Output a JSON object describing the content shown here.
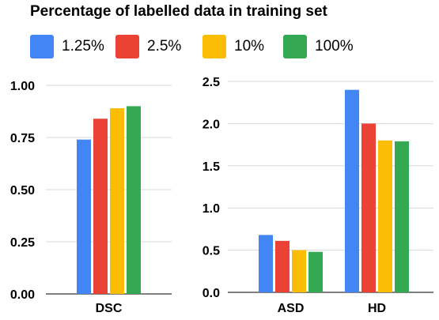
{
  "legend": {
    "title": "Percentage of labelled data in training set",
    "items": [
      {
        "label": "1.25%",
        "color": "#4285f4"
      },
      {
        "label": "2.5%",
        "color": "#ea4335"
      },
      {
        "label": "10%",
        "color": "#fbbc04"
      },
      {
        "label": "100%",
        "color": "#34a853"
      }
    ]
  },
  "chart_data": [
    {
      "type": "bar",
      "categories": [
        "DSC"
      ],
      "series": [
        {
          "name": "1.25%",
          "values": [
            0.74
          ]
        },
        {
          "name": "2.5%",
          "values": [
            0.84
          ]
        },
        {
          "name": "10%",
          "values": [
            0.89
          ]
        },
        {
          "name": "100%",
          "values": [
            0.9
          ]
        }
      ],
      "ylim": [
        0,
        1.0
      ],
      "yticks": [
        "0.00",
        "0.25",
        "0.50",
        "0.75",
        "1.00"
      ],
      "grid": true,
      "legend_placement": "top"
    },
    {
      "type": "bar",
      "categories": [
        "ASD",
        "HD"
      ],
      "series": [
        {
          "name": "1.25%",
          "values": [
            0.68,
            2.4
          ]
        },
        {
          "name": "2.5%",
          "values": [
            0.61,
            2.0
          ]
        },
        {
          "name": "10%",
          "values": [
            0.5,
            1.8
          ]
        },
        {
          "name": "100%",
          "values": [
            0.48,
            1.79
          ]
        }
      ],
      "ylim": [
        0,
        2.5
      ],
      "yticks": [
        "0.0",
        "0.5",
        "1.0",
        "1.5",
        "2.0",
        "2.5"
      ],
      "grid": true,
      "legend_placement": "top"
    }
  ]
}
